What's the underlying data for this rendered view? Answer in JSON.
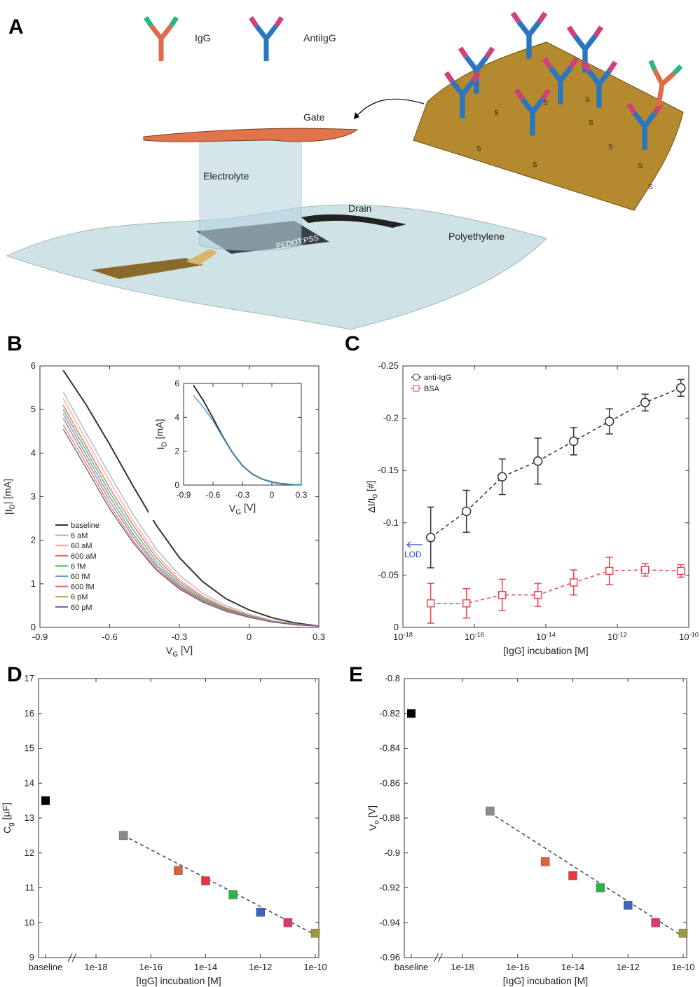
{
  "panels": [
    "A",
    "B",
    "C",
    "D",
    "E"
  ],
  "diagram": {
    "antibodies": [
      "IgG",
      "AntiIgG"
    ],
    "labels": [
      "Gate",
      "Electrolyte",
      "Drain",
      "PEDOT:PSS",
      "Polyethylene"
    ],
    "surface_labels": [
      "S",
      "S",
      "S",
      "S",
      "S",
      "S",
      "S",
      "S",
      "S"
    ]
  },
  "chart_data": [
    {
      "type": "line",
      "xlabel": "V_G [V]",
      "ylabel": "|I_D| [mA]",
      "x": [
        -0.8,
        -0.7,
        -0.6,
        -0.5,
        -0.4,
        -0.3,
        -0.2,
        -0.1,
        0,
        0.1,
        0.2,
        0.3
      ],
      "series": [
        {
          "name": "baseline",
          "color": "#333333",
          "values": [
            5.9,
            5.1,
            4.2,
            3.25,
            2.35,
            1.6,
            1.05,
            0.66,
            0.4,
            0.22,
            0.1,
            0.03
          ]
        },
        {
          "name": "6 aM",
          "color": "#b0b0b0",
          "values": [
            5.4,
            4.45,
            3.5,
            2.6,
            1.8,
            1.2,
            0.78,
            0.5,
            0.3,
            0.16,
            0.08,
            0.03
          ]
        },
        {
          "name": "60 aM",
          "color": "#f4a6a0",
          "values": [
            5.25,
            4.3,
            3.35,
            2.45,
            1.68,
            1.1,
            0.72,
            0.46,
            0.28,
            0.15,
            0.07,
            0.03
          ]
        },
        {
          "name": "600 aM",
          "color": "#f06060",
          "values": [
            5.1,
            4.15,
            3.2,
            2.35,
            1.6,
            1.05,
            0.69,
            0.44,
            0.27,
            0.14,
            0.07,
            0.03
          ]
        },
        {
          "name": "6 fM",
          "color": "#3cc24a",
          "values": [
            5.0,
            4.05,
            3.1,
            2.25,
            1.52,
            1.0,
            0.66,
            0.42,
            0.26,
            0.14,
            0.07,
            0.03
          ]
        },
        {
          "name": "60 fM",
          "color": "#6a8de0",
          "values": [
            4.9,
            3.95,
            3.0,
            2.15,
            1.45,
            0.96,
            0.63,
            0.4,
            0.25,
            0.13,
            0.06,
            0.03
          ]
        },
        {
          "name": "600 fM",
          "color": "#e0607a",
          "values": [
            4.8,
            3.85,
            2.9,
            2.08,
            1.4,
            0.93,
            0.61,
            0.39,
            0.24,
            0.13,
            0.06,
            0.03
          ]
        },
        {
          "name": "6 pM",
          "color": "#a8a040",
          "values": [
            4.65,
            3.75,
            2.8,
            2.0,
            1.35,
            0.9,
            0.6,
            0.38,
            0.24,
            0.13,
            0.06,
            0.03
          ]
        },
        {
          "name": "60 pM",
          "color": "#8a4a9a",
          "values": [
            4.55,
            3.65,
            2.72,
            1.95,
            1.32,
            0.88,
            0.58,
            0.37,
            0.23,
            0.12,
            0.06,
            0.03
          ]
        }
      ],
      "xlim": [
        -0.9,
        0.3
      ],
      "xticks": [
        -0.9,
        -0.6,
        -0.3,
        0,
        0.3
      ],
      "ylim": [
        0,
        6
      ],
      "yticks": [
        0,
        1,
        2,
        3,
        4,
        5,
        6
      ],
      "legend": "lower left"
    },
    {
      "type": "line",
      "xlabel": "V_G [V]",
      "ylabel": "I_D [mA]",
      "x": [
        -0.8,
        -0.7,
        -0.6,
        -0.5,
        -0.4,
        -0.3,
        -0.2,
        -0.1,
        0,
        0.1,
        0.2,
        0.3
      ],
      "series": [
        {
          "color": "#333333",
          "values": [
            5.9,
            5.0,
            3.95,
            2.85,
            1.9,
            1.15,
            0.65,
            0.35,
            0.18,
            0.08,
            0.03,
            0.01
          ]
        },
        {
          "color": "#3a9ad0",
          "values": [
            5.3,
            4.6,
            3.8,
            2.8,
            1.9,
            1.15,
            0.65,
            0.35,
            0.18,
            0.08,
            0.03,
            0.01
          ]
        }
      ],
      "xlim": [
        -0.9,
        0.3
      ],
      "xticks": [
        -0.9,
        -0.6,
        -0.3,
        0,
        0.3
      ],
      "ylim": [
        0,
        6
      ],
      "yticks": [
        0,
        2,
        4,
        6
      ]
    },
    {
      "type": "errorbar",
      "xlabel": "[IgG] incubation [M]",
      "ylabel": "ΔI/I_0 [#]",
      "xlog": true,
      "x": [
        6e-18,
        6e-17,
        6e-16,
        6e-15,
        6e-14,
        6e-13,
        6e-12,
        6e-11
      ],
      "series": [
        {
          "name": "anti-IgG",
          "color": "#333333",
          "marker": "circle",
          "values": [
            -0.086,
            -0.111,
            -0.144,
            -0.159,
            -0.178,
            -0.197,
            -0.215,
            -0.229
          ],
          "errors": [
            0.029,
            0.02,
            0.017,
            0.022,
            0.013,
            0.012,
            0.008,
            0.008
          ]
        },
        {
          "name": "BSA",
          "color": "#e8474f",
          "marker": "square",
          "values": [
            -0.023,
            -0.023,
            -0.031,
            -0.031,
            -0.043,
            -0.054,
            -0.055,
            -0.054
          ],
          "errors": [
            0.019,
            0.014,
            0.015,
            0.011,
            0.012,
            0.013,
            0.006,
            0.006
          ]
        }
      ],
      "xlim": [
        1e-18,
        1e-10
      ],
      "xticks": [
        {
          "value": 1e-18,
          "label": "10^-18"
        },
        {
          "value": 1e-16,
          "label": "10^-16"
        },
        {
          "value": 1e-14,
          "label": "10^-14"
        },
        {
          "value": 1e-12,
          "label": "10^-12"
        },
        {
          "value": 1e-10,
          "label": "10^-10"
        }
      ],
      "ylim": [
        0,
        -0.25
      ],
      "yticks": [
        0,
        -0.05,
        -0.1,
        -0.15,
        -0.2,
        -0.25
      ],
      "legend": "upper left",
      "annotation": "LOD"
    },
    {
      "type": "scatter",
      "xlabel": "[IgG] incubation [M]",
      "ylabel": "C_g [μF]",
      "xlog": true,
      "baseline": {
        "label": "baseline",
        "value": 13.5,
        "color": "#000000"
      },
      "x": [
        1e-17,
        1e-15,
        1e-14,
        1e-13,
        1e-12,
        1e-11,
        1e-10
      ],
      "values": [
        12.5,
        11.5,
        11.2,
        10.8,
        10.3,
        10.0,
        9.7
      ],
      "colors": [
        "#8a8a8a",
        "#e0623a",
        "#e8383c",
        "#2bb24a",
        "#3a64c0",
        "#e0386a",
        "#9a9a3a"
      ],
      "fit": {
        "x": [
          1e-17,
          1e-10
        ],
        "values": [
          12.5,
          9.65
        ]
      },
      "xlim": [
        1e-18,
        1e-10
      ],
      "xticks": [
        1e-18,
        1e-16,
        1e-14,
        1e-12,
        1e-10
      ],
      "ylim": [
        9,
        17
      ],
      "yticks": [
        9,
        10,
        11,
        12,
        13,
        14,
        15,
        16,
        17
      ]
    },
    {
      "type": "scatter",
      "xlabel": "[IgG] incubation [M]",
      "ylabel": "V_o [V]",
      "xlog": true,
      "baseline": {
        "label": "baseline",
        "value": -0.82,
        "color": "#000000"
      },
      "x": [
        1e-17,
        1e-15,
        1e-14,
        1e-13,
        1e-12,
        1e-11,
        1e-10
      ],
      "values": [
        -0.876,
        -0.905,
        -0.913,
        -0.92,
        -0.93,
        -0.94,
        -0.946
      ],
      "colors": [
        "#8a8a8a",
        "#e0623a",
        "#e8383c",
        "#2bb24a",
        "#3a64c0",
        "#e0386a",
        "#9a9a3a"
      ],
      "fit": {
        "x": [
          1e-17,
          1e-10
        ],
        "values": [
          -0.877,
          -0.948
        ]
      },
      "xlim": [
        1e-18,
        1e-10
      ],
      "xticks": [
        1e-18,
        1e-16,
        1e-14,
        1e-12,
        1e-10
      ],
      "ylim": [
        -0.96,
        -0.8
      ],
      "yticks": [
        -0.96,
        -0.94,
        -0.92,
        -0.9,
        -0.88,
        -0.86,
        -0.84,
        -0.82,
        -0.8
      ]
    }
  ]
}
